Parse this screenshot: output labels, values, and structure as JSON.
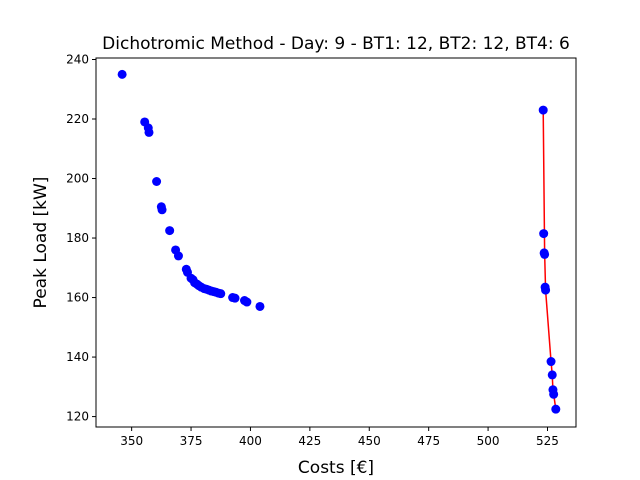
{
  "chart_data": {
    "type": "scatter",
    "title": "Dichotromic Method - Day: 9 - BT1: 12, BT2: 12, BT4: 6",
    "xlabel": "Costs [€]",
    "ylabel": "Peak Load [kW]",
    "xlim": [
      335,
      537
    ],
    "ylim": [
      116.5,
      240.5
    ],
    "xticks": [
      350,
      375,
      400,
      425,
      450,
      475,
      500,
      525
    ],
    "yticks": [
      120,
      140,
      160,
      180,
      200,
      220,
      240
    ],
    "point_color": "#0000ff",
    "line_color": "#ff0000",
    "series": [
      {
        "name": "solutions",
        "style": "points",
        "x": [
          346,
          355.5,
          357,
          357.3,
          360.5,
          362.5,
          362.8,
          366,
          368.5,
          369.7,
          373,
          373.5,
          375,
          375.8,
          376.5,
          377.5,
          378.3,
          379.3,
          380.5,
          381.5,
          382.5,
          383.5,
          384.5,
          385.5,
          386.5,
          387.5,
          392.5,
          393.5,
          397.5,
          398.5,
          404,
          523.2,
          523.4,
          523.6,
          523.8,
          524,
          524.2,
          526.5,
          527,
          527.3,
          527.6,
          528.5
        ],
        "y": [
          235,
          219,
          217,
          215.5,
          199,
          190.5,
          189.5,
          182.5,
          176,
          174,
          169.5,
          168.5,
          166.5,
          166,
          165,
          164.5,
          164,
          163.5,
          163,
          162.8,
          162.5,
          162.2,
          162,
          161.8,
          161.5,
          161.3,
          160,
          159.8,
          159,
          158.5,
          157,
          223,
          181.5,
          175,
          174.5,
          163.5,
          162.5,
          138.5,
          134,
          129,
          127.5,
          122.5
        ]
      },
      {
        "name": "dichotomic front",
        "style": "line",
        "x": [
          523.2,
          523.8,
          524.2,
          526.5,
          527,
          527.3,
          527.6,
          528.5
        ],
        "y": [
          223,
          175,
          162.5,
          138.5,
          134,
          129,
          127.5,
          122.5
        ]
      }
    ]
  }
}
